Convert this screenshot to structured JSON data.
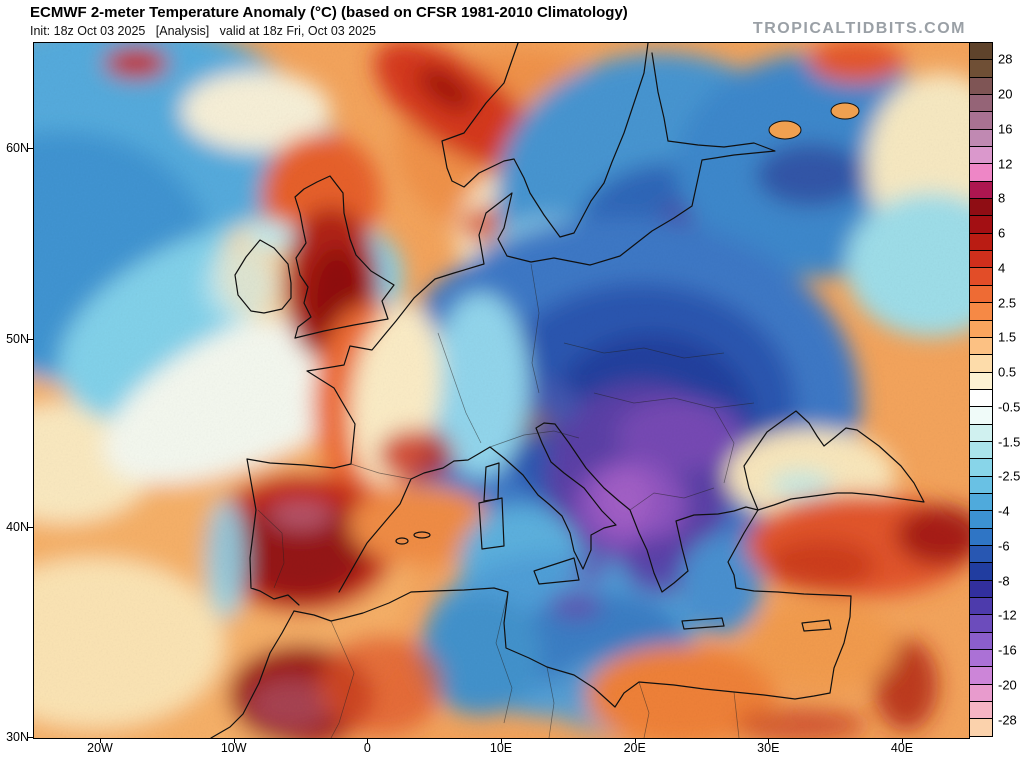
{
  "header": {
    "title": "ECMWF 2-meter Temperature Anomaly (°C) (based on CFSR 1981-2010 Climatology)",
    "subtitle": "Init: 18z Oct 03 2025   [Analysis]   valid at 18z Fri, Oct 03 2025",
    "watermark": "TROPICALTIDBITS.COM"
  },
  "map": {
    "xaxis_labels": [
      "20W",
      "10W",
      "0",
      "10E",
      "20E",
      "30E",
      "40E"
    ],
    "yaxis_labels": [
      "60N",
      "50N",
      "40N",
      "30N"
    ]
  },
  "colorbar": {
    "unit": "°C",
    "labels": [
      "28",
      "20",
      "16",
      "12",
      "8",
      "6",
      "4",
      "2.5",
      "1.5",
      "0.5",
      "-0.5",
      "-1.5",
      "-2.5",
      "-4",
      "-6",
      "-8",
      "-12",
      "-16",
      "-20",
      "-28"
    ],
    "cell_colors": [
      "#5e432b",
      "#6f4f35",
      "#7f5555",
      "#956477",
      "#a87292",
      "#c089b2",
      "#da98cc",
      "#ee86c6",
      "#ad1650",
      "#8f0d14",
      "#a30f13",
      "#ba1c13",
      "#d02f1c",
      "#e24d28",
      "#ee6b34",
      "#f68945",
      "#faa55e",
      "#fcc183",
      "#fddcaa",
      "#fdf2d2",
      "#ffffff",
      "#f0fbf9",
      "#d0f1f0",
      "#aae4ec",
      "#88d5e9",
      "#69c1e4",
      "#4faadc",
      "#3c92d1",
      "#2f75c5",
      "#2857b2",
      "#213da0",
      "#322f9e",
      "#4d3bac",
      "#6c4cbc",
      "#8b5ecb",
      "#ab71d6",
      "#cc85d8",
      "#e89bcd",
      "#f5b5c4",
      "#fbd2ac"
    ]
  }
}
